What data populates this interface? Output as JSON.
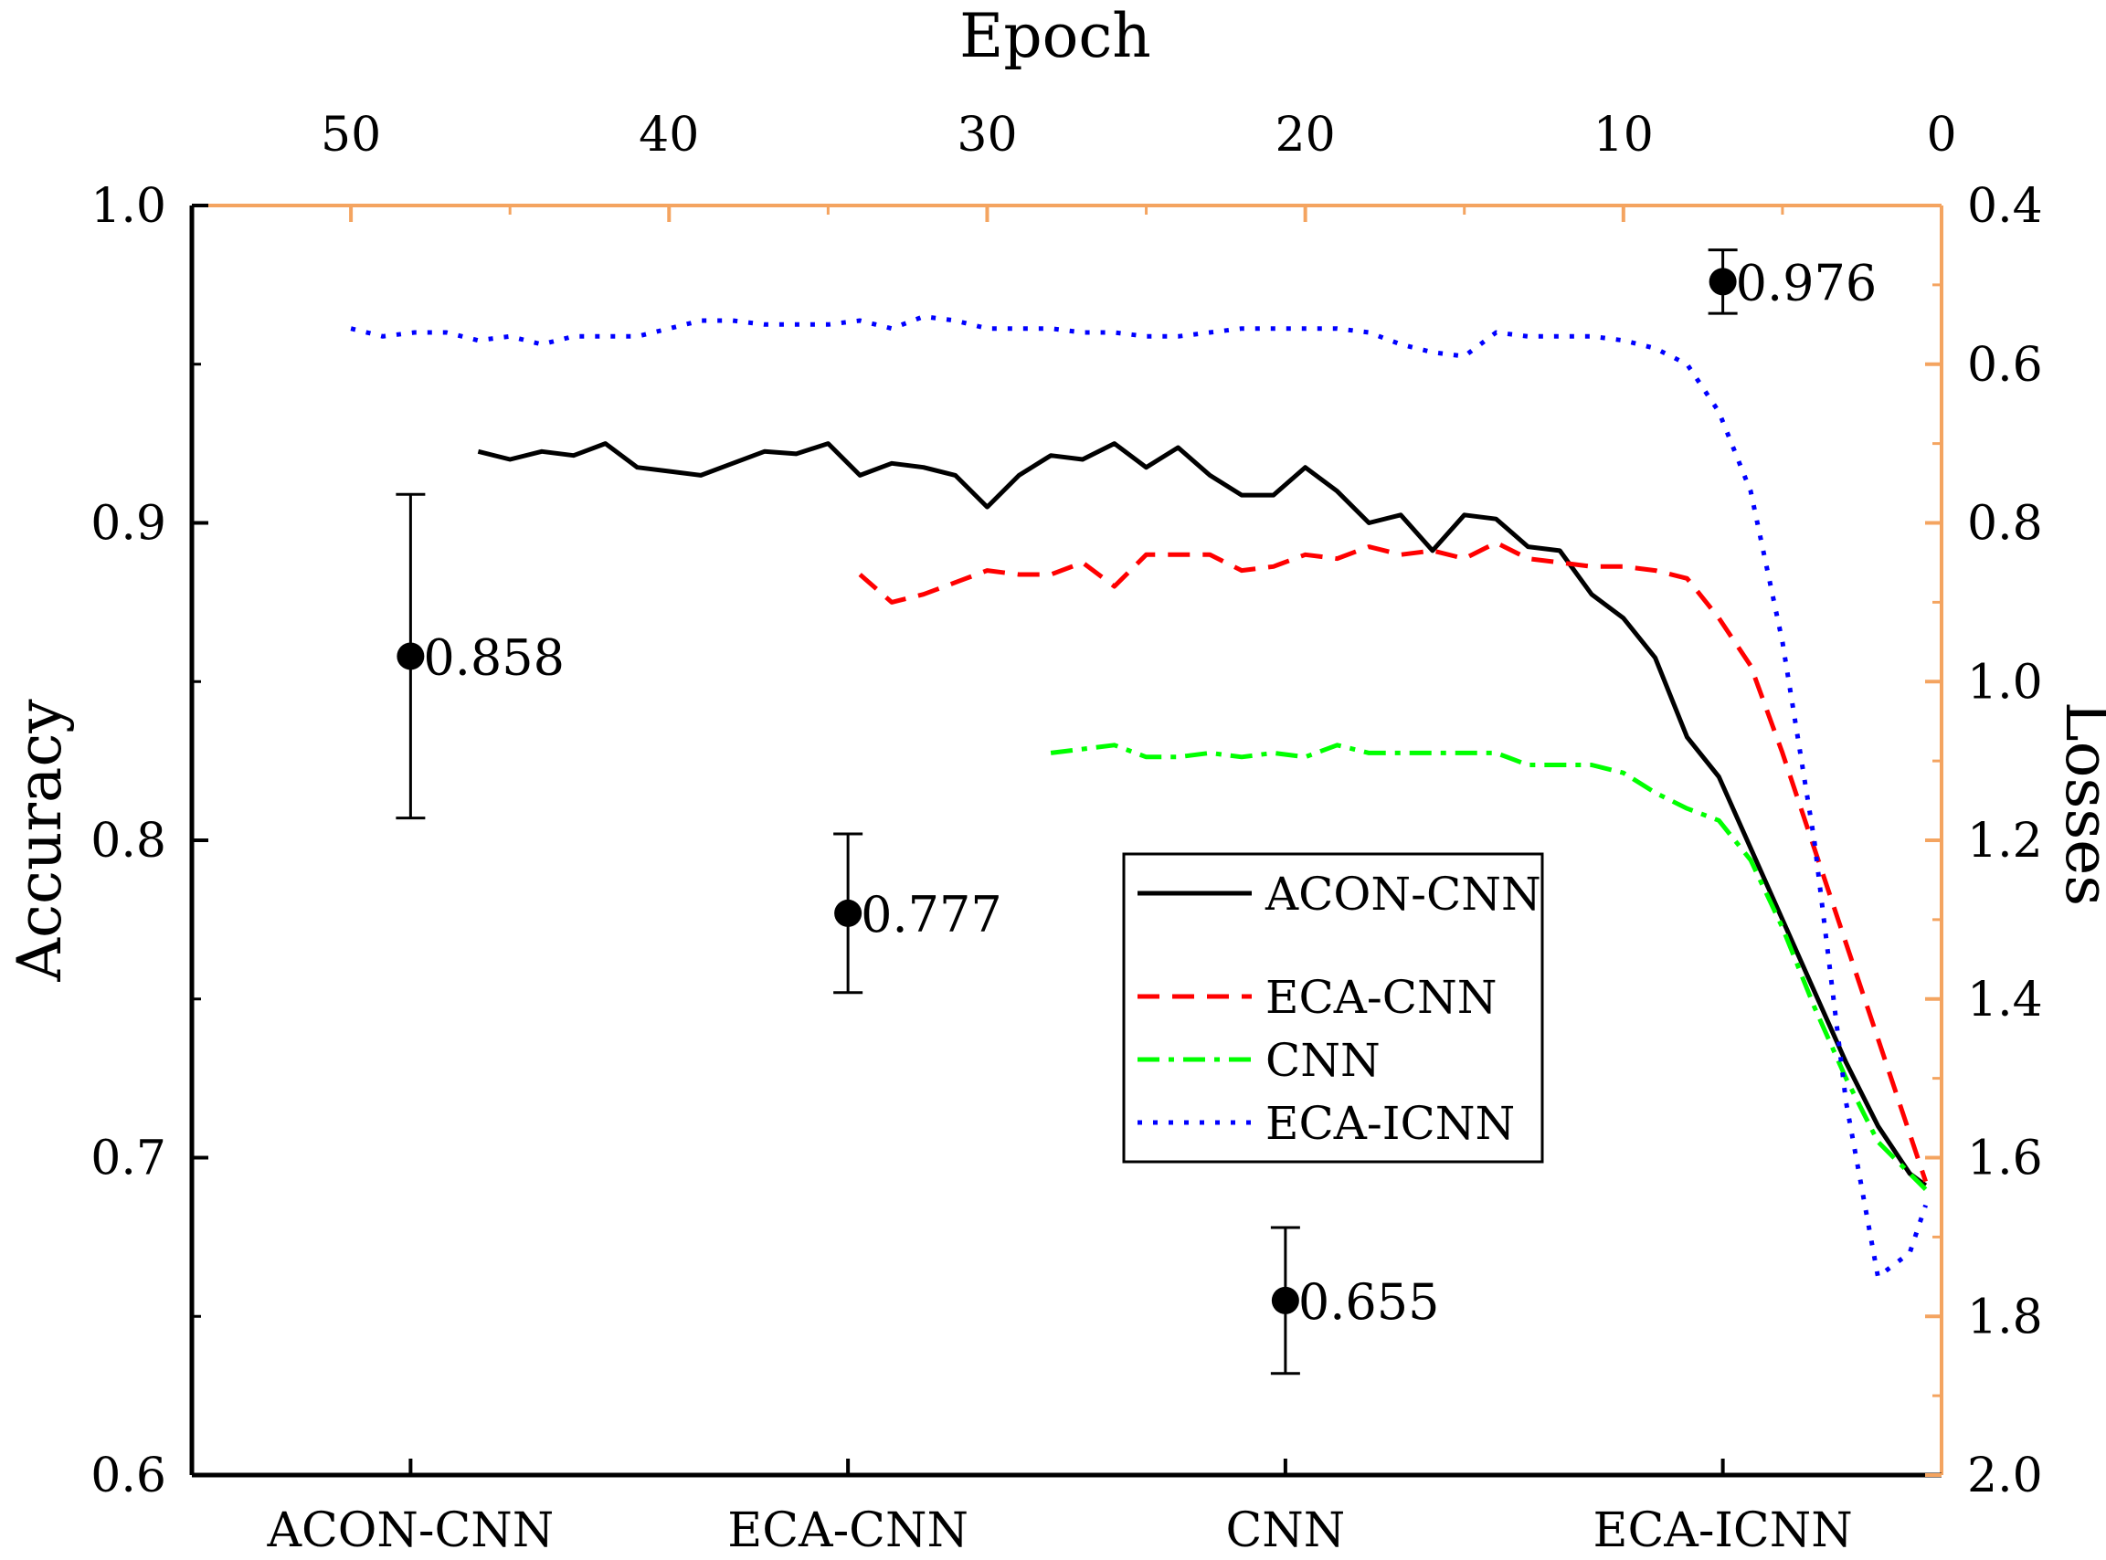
{
  "chart_data": {
    "type": "line+errorbar",
    "top_axis": {
      "title": "Epoch",
      "range": [
        55,
        0
      ],
      "ticks": [
        50,
        40,
        30,
        20,
        10,
        0
      ],
      "tick_labels": [
        "50",
        "40",
        "30",
        "20",
        "10",
        "0"
      ]
    },
    "left_axis": {
      "title": "Accuracy",
      "range": [
        0.6,
        1.0
      ],
      "ticks": [
        0.6,
        0.7,
        0.8,
        0.9,
        1.0
      ],
      "tick_labels": [
        "0.6",
        "0.7",
        "0.8",
        "0.9",
        "1.0"
      ]
    },
    "right_axis": {
      "title": "Losses",
      "range": [
        0.4,
        2.0
      ],
      "inverted": true,
      "ticks": [
        0.4,
        0.6,
        0.8,
        1.0,
        1.2,
        1.4,
        1.6,
        1.8,
        2.0
      ],
      "tick_labels": [
        "0.4",
        "0.6",
        "0.8",
        "1.0",
        "1.2",
        "1.4",
        "1.6",
        "1.8",
        "2.0"
      ]
    },
    "bottom_axis": {
      "categories": [
        "ACON-CNN",
        "ECA-CNN",
        "CNN",
        "ECA-ICNN"
      ]
    },
    "accuracy_points": [
      {
        "category": "ACON-CNN",
        "value": 0.858,
        "label": "0.858",
        "err_low": 0.807,
        "err_high": 0.909
      },
      {
        "category": "ECA-CNN",
        "value": 0.777,
        "label": "0.777",
        "err_low": 0.752,
        "err_high": 0.802
      },
      {
        "category": "CNN",
        "value": 0.655,
        "label": "0.655",
        "err_low": 0.632,
        "err_high": 0.678
      },
      {
        "category": "ECA-ICNN",
        "value": 0.976,
        "label": "0.976",
        "err_low": 0.966,
        "err_high": 0.986
      }
    ],
    "loss_series": [
      {
        "name": "ACON-CNN",
        "color": "#000000",
        "style": "solid",
        "points": [
          [
            46,
            0.71
          ],
          [
            45,
            0.72
          ],
          [
            44,
            0.71
          ],
          [
            43,
            0.715
          ],
          [
            42,
            0.7
          ],
          [
            41,
            0.73
          ],
          [
            40,
            0.735
          ],
          [
            39,
            0.74
          ],
          [
            38,
            0.725
          ],
          [
            37,
            0.71
          ],
          [
            36,
            0.713
          ],
          [
            35,
            0.7
          ],
          [
            34,
            0.74
          ],
          [
            33,
            0.725
          ],
          [
            32,
            0.73
          ],
          [
            31,
            0.74
          ],
          [
            30,
            0.78
          ],
          [
            29,
            0.74
          ],
          [
            28,
            0.715
          ],
          [
            27,
            0.72
          ],
          [
            26,
            0.7
          ],
          [
            25,
            0.73
          ],
          [
            24,
            0.705
          ],
          [
            23,
            0.74
          ],
          [
            22,
            0.765
          ],
          [
            21,
            0.765
          ],
          [
            20,
            0.73
          ],
          [
            19,
            0.76
          ],
          [
            18,
            0.8
          ],
          [
            17,
            0.79
          ],
          [
            16,
            0.835
          ],
          [
            15,
            0.79
          ],
          [
            14,
            0.795
          ],
          [
            13,
            0.83
          ],
          [
            12,
            0.835
          ],
          [
            11,
            0.89
          ],
          [
            10,
            0.92
          ],
          [
            9,
            0.97
          ],
          [
            8,
            1.07
          ],
          [
            7,
            1.12
          ],
          [
            6,
            1.21
          ],
          [
            5,
            1.3
          ],
          [
            4,
            1.39
          ],
          [
            3,
            1.48
          ],
          [
            2,
            1.56
          ],
          [
            1,
            1.62
          ],
          [
            0.5,
            1.635
          ]
        ]
      },
      {
        "name": "ECA-CNN",
        "color": "#ff0000",
        "style": "dashed",
        "points": [
          [
            34,
            0.865
          ],
          [
            33,
            0.9
          ],
          [
            32,
            0.89
          ],
          [
            31,
            0.875
          ],
          [
            30,
            0.86
          ],
          [
            29,
            0.865
          ],
          [
            28,
            0.865
          ],
          [
            27,
            0.85
          ],
          [
            26,
            0.88
          ],
          [
            25,
            0.84
          ],
          [
            24,
            0.84
          ],
          [
            23,
            0.84
          ],
          [
            22,
            0.86
          ],
          [
            21,
            0.855
          ],
          [
            20,
            0.84
          ],
          [
            19,
            0.845
          ],
          [
            18,
            0.83
          ],
          [
            17,
            0.84
          ],
          [
            16,
            0.835
          ],
          [
            15,
            0.845
          ],
          [
            14,
            0.825
          ],
          [
            13,
            0.845
          ],
          [
            12,
            0.85
          ],
          [
            11,
            0.855
          ],
          [
            10,
            0.855
          ],
          [
            9,
            0.86
          ],
          [
            8,
            0.87
          ],
          [
            7,
            0.92
          ],
          [
            6,
            0.98
          ],
          [
            5,
            1.09
          ],
          [
            4,
            1.21
          ],
          [
            3,
            1.33
          ],
          [
            2,
            1.45
          ],
          [
            1,
            1.57
          ],
          [
            0.5,
            1.63
          ]
        ]
      },
      {
        "name": "CNN",
        "color": "#00ff00",
        "style": "dashdot",
        "points": [
          [
            28,
            1.09
          ],
          [
            27,
            1.085
          ],
          [
            26,
            1.08
          ],
          [
            25,
            1.095
          ],
          [
            24,
            1.095
          ],
          [
            23,
            1.09
          ],
          [
            22,
            1.095
          ],
          [
            21,
            1.09
          ],
          [
            20,
            1.095
          ],
          [
            19,
            1.08
          ],
          [
            18,
            1.09
          ],
          [
            17,
            1.09
          ],
          [
            16,
            1.09
          ],
          [
            15,
            1.09
          ],
          [
            14,
            1.09
          ],
          [
            13,
            1.105
          ],
          [
            12,
            1.105
          ],
          [
            11,
            1.105
          ],
          [
            10,
            1.115
          ],
          [
            9,
            1.14
          ],
          [
            8,
            1.16
          ],
          [
            7,
            1.175
          ],
          [
            6,
            1.225
          ],
          [
            5,
            1.31
          ],
          [
            4,
            1.41
          ],
          [
            3,
            1.5
          ],
          [
            2,
            1.58
          ],
          [
            1,
            1.62
          ],
          [
            0.5,
            1.64
          ]
        ]
      },
      {
        "name": "ECA-ICNN",
        "color": "#0000ff",
        "style": "dotted",
        "points": [
          [
            50,
            0.555
          ],
          [
            49,
            0.565
          ],
          [
            48,
            0.56
          ],
          [
            47,
            0.56
          ],
          [
            46,
            0.57
          ],
          [
            45,
            0.565
          ],
          [
            44,
            0.575
          ],
          [
            43,
            0.565
          ],
          [
            42,
            0.565
          ],
          [
            41,
            0.565
          ],
          [
            40,
            0.555
          ],
          [
            39,
            0.545
          ],
          [
            38,
            0.545
          ],
          [
            37,
            0.55
          ],
          [
            36,
            0.55
          ],
          [
            35,
            0.55
          ],
          [
            34,
            0.545
          ],
          [
            33,
            0.555
          ],
          [
            32,
            0.54
          ],
          [
            31,
            0.545
          ],
          [
            30,
            0.555
          ],
          [
            29,
            0.555
          ],
          [
            28,
            0.555
          ],
          [
            27,
            0.56
          ],
          [
            26,
            0.56
          ],
          [
            25,
            0.565
          ],
          [
            24,
            0.565
          ],
          [
            23,
            0.56
          ],
          [
            22,
            0.555
          ],
          [
            21,
            0.555
          ],
          [
            20,
            0.555
          ],
          [
            19,
            0.555
          ],
          [
            18,
            0.56
          ],
          [
            17,
            0.575
          ],
          [
            16,
            0.585
          ],
          [
            15,
            0.59
          ],
          [
            14,
            0.56
          ],
          [
            13,
            0.565
          ],
          [
            12,
            0.565
          ],
          [
            11,
            0.565
          ],
          [
            10,
            0.57
          ],
          [
            9,
            0.58
          ],
          [
            8,
            0.6
          ],
          [
            7,
            0.66
          ],
          [
            6,
            0.76
          ],
          [
            5,
            0.95
          ],
          [
            4,
            1.2
          ],
          [
            3,
            1.53
          ],
          [
            2,
            1.75
          ],
          [
            1,
            1.72
          ],
          [
            0.5,
            1.66
          ]
        ]
      }
    ],
    "legend": {
      "placement": "center-right",
      "entries": [
        "ACON-CNN",
        "ECA-CNN",
        "CNN",
        "ECA-ICNN"
      ]
    }
  }
}
